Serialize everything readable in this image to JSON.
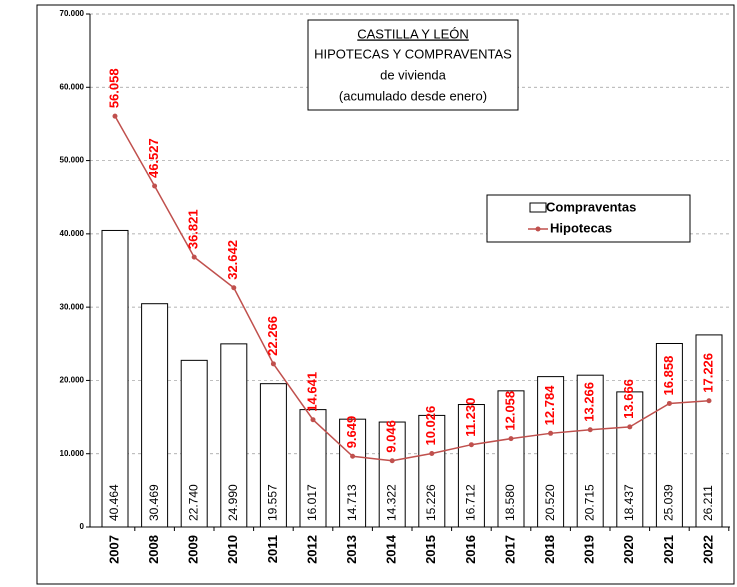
{
  "chart_data": {
    "type": "bar_line",
    "title": "CASTILLA Y LEÓN",
    "subtitle": [
      "HIPOTECAS Y COMPRAVENTAS",
      "de vivienda",
      "(acumulado desde enero)"
    ],
    "categories": [
      "2007",
      "2008",
      "2009",
      "2010",
      "2011",
      "2012",
      "2013",
      "2014",
      "2015",
      "2016",
      "2017",
      "2018",
      "2019",
      "2020",
      "2021",
      "2022"
    ],
    "series": [
      {
        "name": "Compraventas",
        "type": "bar",
        "color": "#ffffff",
        "values": [
          40464,
          30469,
          22740,
          24990,
          19557,
          16017,
          14713,
          14322,
          15226,
          16712,
          18580,
          20520,
          20715,
          18437,
          25039,
          26211
        ],
        "value_labels": [
          "40.464",
          "30.469",
          "22.740",
          "24.990",
          "19.557",
          "16.017",
          "14.713",
          "14.322",
          "15.226",
          "16.712",
          "18.580",
          "20.520",
          "20.715",
          "18.437",
          "25.039",
          "26.211"
        ]
      },
      {
        "name": "Hipotecas",
        "type": "line",
        "color": "#c0504d",
        "values": [
          56058,
          46527,
          36821,
          32642,
          22266,
          14641,
          9649,
          9046,
          10026,
          11230,
          12058,
          12784,
          13266,
          13666,
          16858,
          17226
        ],
        "value_labels": [
          "56.058",
          "46.527",
          "36.821",
          "32.642",
          "22.266",
          "14.641",
          "9.649",
          "9.046",
          "10.026",
          "11.230",
          "12.058",
          "12.784",
          "13.266",
          "13.666",
          "16.858",
          "17.226"
        ]
      }
    ],
    "ylim": [
      0,
      70000
    ],
    "yticks": [
      0,
      {
        "value": 10000,
        "label": "10.000"
      },
      {
        "value": 20000,
        "label": "20.000"
      },
      {
        "value": 30000,
        "label": "30.000"
      },
      {
        "value": 40000,
        "label": "40.000"
      },
      {
        "value": 50000,
        "label": "50.000"
      },
      {
        "value": 60000,
        "label": "60.000"
      },
      {
        "value": 70000,
        "label": "70.000"
      }
    ],
    "grid": true,
    "legend": "upper right"
  }
}
